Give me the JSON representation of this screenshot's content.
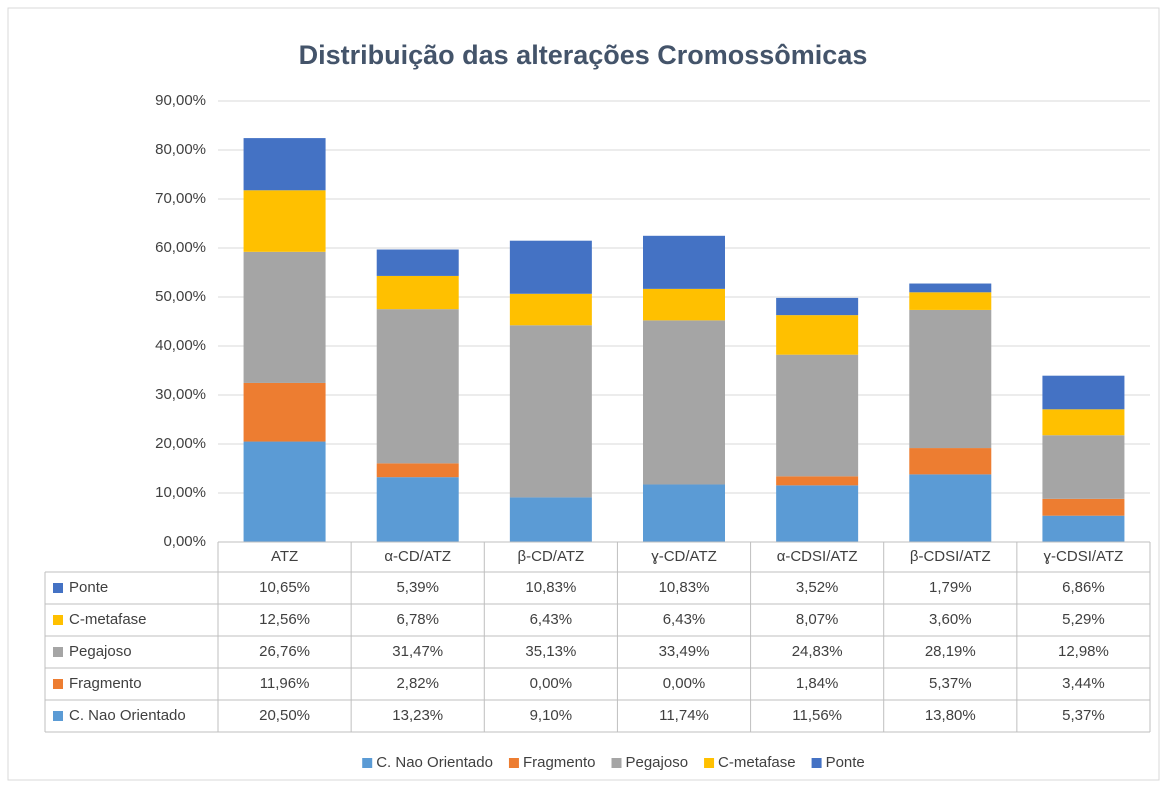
{
  "chart_data": {
    "type": "stacked_bar",
    "title": "Distribuição das alterações Cromossômicas",
    "categories": [
      "ATZ",
      "α-CD/ATZ",
      "β-CD/ATZ",
      "ɣ-CD/ATZ",
      "α-CDSI/ATZ",
      "β-CDSI/ATZ",
      "ɣ-CDSI/ATZ"
    ],
    "series": [
      {
        "name": "C. Nao Orientado",
        "color": "#5b9bd5",
        "values": [
          20.5,
          13.23,
          9.1,
          11.74,
          11.56,
          13.8,
          5.37
        ],
        "value_labels": [
          "20,50%",
          "13,23%",
          "9,10%",
          "11,74%",
          "11,56%",
          "13,80%",
          "5,37%"
        ]
      },
      {
        "name": "Fragmento",
        "color": "#ed7d31",
        "values": [
          11.96,
          2.82,
          0.0,
          0.0,
          1.84,
          5.37,
          3.44
        ],
        "value_labels": [
          "11,96%",
          "2,82%",
          "0,00%",
          "0,00%",
          "1,84%",
          "5,37%",
          "3,44%"
        ]
      },
      {
        "name": "Pegajoso",
        "color": "#a5a5a5",
        "values": [
          26.76,
          31.47,
          35.13,
          33.49,
          24.83,
          28.19,
          12.98
        ],
        "value_labels": [
          "26,76%",
          "31,47%",
          "35,13%",
          "33,49%",
          "24,83%",
          "28,19%",
          "12,98%"
        ]
      },
      {
        "name": "C-metafase",
        "color": "#ffc000",
        "values": [
          12.56,
          6.78,
          6.43,
          6.43,
          8.07,
          3.6,
          5.29
        ],
        "value_labels": [
          "12,56%",
          "6,78%",
          "6,43%",
          "6,43%",
          "8,07%",
          "3,60%",
          "5,29%"
        ]
      },
      {
        "name": "Ponte",
        "color": "#4472c4",
        "values": [
          10.65,
          5.39,
          10.83,
          10.83,
          3.52,
          1.79,
          6.86
        ],
        "value_labels": [
          "10,65%",
          "5,39%",
          "10,83%",
          "10,83%",
          "3,52%",
          "1,79%",
          "6,86%"
        ]
      }
    ],
    "ylim": [
      0,
      90
    ],
    "yticks": [
      {
        "value": 0,
        "label": "0,00%"
      },
      {
        "value": 10,
        "label": "10,00%"
      },
      {
        "value": 20,
        "label": "20,00%"
      },
      {
        "value": 30,
        "label": "30,00%"
      },
      {
        "value": 40,
        "label": "40,00%"
      },
      {
        "value": 50,
        "label": "50,00%"
      },
      {
        "value": 60,
        "label": "60,00%"
      },
      {
        "value": 70,
        "label": "70,00%"
      },
      {
        "value": 80,
        "label": "80,00%"
      },
      {
        "value": 90,
        "label": "90,00%"
      }
    ],
    "grid": true
  }
}
